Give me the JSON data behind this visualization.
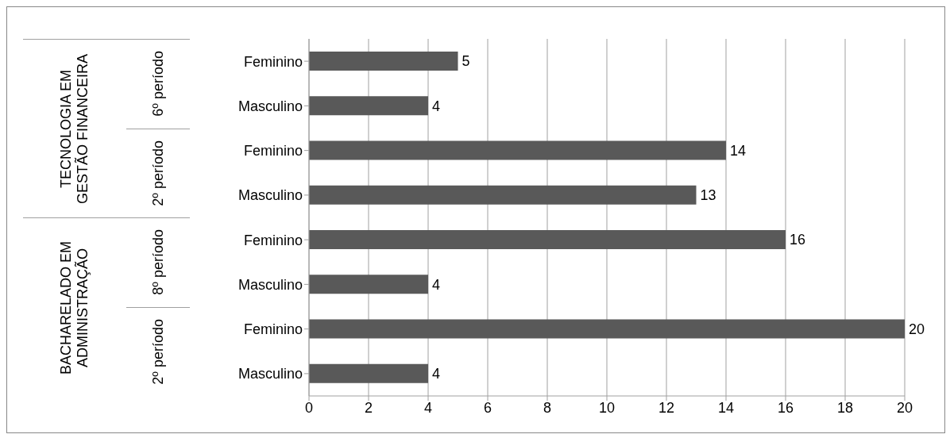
{
  "chart_data": {
    "type": "bar",
    "orientation": "horizontal",
    "categories": [
      "Feminino",
      "Masculino",
      "Feminino",
      "Masculino",
      "Feminino",
      "Masculino",
      "Feminino",
      "Masculino"
    ],
    "values": [
      5,
      4,
      14,
      13,
      16,
      4,
      20,
      4
    ],
    "color": "#595959",
    "xlim": [
      0,
      20
    ],
    "xticks": [
      0,
      2,
      4,
      6,
      8,
      10,
      12,
      14,
      16,
      18,
      20
    ],
    "grid": "x",
    "data_labels": true,
    "annotations": [
      "6º período",
      "2º período",
      "8º período",
      "2º período",
      "TECNOLOGIA EM GESTÃO FINANCEIRA",
      "BACHARELADO EM ADMINISTRAÇÃO"
    ]
  }
}
